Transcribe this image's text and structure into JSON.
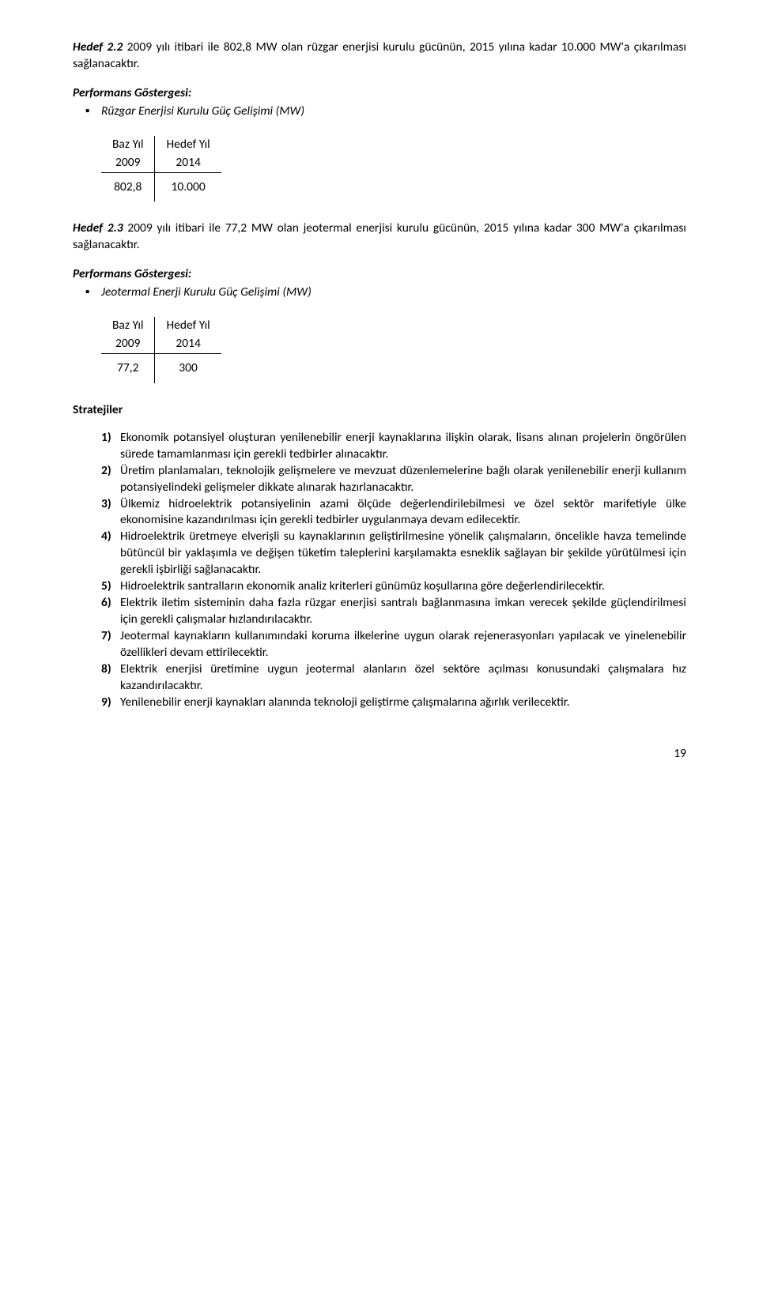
{
  "hedef22": {
    "label": "Hedef 2.2",
    "text": " 2009 yılı itibari ile 802,8 MW olan rüzgar enerjisi kurulu gücünün, 2015 yılına kadar 10.000 MW'a çıkarılması sağlanacaktır."
  },
  "perf1": {
    "title": "Performans Göstergesi:",
    "item": "Rüzgar Enerjisi Kurulu Güç Gelişimi (MW)"
  },
  "table1": {
    "h1a": "Baz Yıl",
    "h1b": "Hedef Yıl",
    "h2a": "2009",
    "h2b": "2014",
    "v1": "802,8",
    "v2": "10.000"
  },
  "hedef23": {
    "label": "Hedef 2.3",
    "text": " 2009 yılı itibari ile 77,2 MW olan jeotermal enerjisi kurulu gücünün, 2015 yılına kadar 300 MW'a çıkarılması sağlanacaktır."
  },
  "perf2": {
    "title": "Performans Göstergesi:",
    "item": "Jeotermal Enerji Kurulu Güç Gelişimi (MW)"
  },
  "table2": {
    "h1a": "Baz Yıl",
    "h1b": "Hedef Yıl",
    "h2a": "2009",
    "h2b": "2014",
    "v1": "77,2",
    "v2": "300"
  },
  "strategiesTitle": "Stratejiler",
  "strategies": {
    "n1": "1)",
    "t1": "Ekonomik potansiyel oluşturan yenilenebilir enerji kaynaklarına ilişkin olarak, lisans alınan projelerin öngörülen sürede tamamlanması için gerekli tedbirler alınacaktır.",
    "n2": "2)",
    "t2": "Üretim planlamaları, teknolojik gelişmelere ve mevzuat düzenlemelerine bağlı olarak yenilenebilir enerji kullanım potansiyelindeki gelişmeler dikkate alınarak hazırlanacaktır.",
    "n3": "3)",
    "t3": "Ülkemiz hidroelektrik potansiyelinin azami ölçüde değerlendirilebilmesi ve özel sektör marifetiyle ülke ekonomisine kazandırılması için gerekli tedbirler uygulanmaya devam edilecektir.",
    "n4": "4)",
    "t4": "Hidroelektrik üretmeye elverişli su kaynaklarının geliştirilmesine yönelik çalışmaların, öncelikle havza temelinde bütüncül bir yaklaşımla ve değişen tüketim taleplerini karşılamakta esneklik sağlayan bir şekilde yürütülmesi için gerekli işbirliği sağlanacaktır.",
    "n5": "5)",
    "t5": "Hidroelektrik santralların ekonomik analiz kriterleri günümüz koşullarına göre değerlendirilecektir.",
    "n6": "6)",
    "t6": "Elektrik iletim sisteminin daha fazla rüzgar enerjisi santralı bağlanmasına imkan verecek şekilde güçlendirilmesi için gerekli çalışmalar hızlandırılacaktır.",
    "n7": "7)",
    "t7": "Jeotermal kaynakların kullanımındaki koruma ilkelerine uygun olarak rejenerasyonları yapılacak ve yinelenebilir özellikleri devam ettirilecektir.",
    "n8": "8)",
    "t8": "Elektrik enerjisi üretimine uygun jeotermal alanların özel sektöre açılması konusundaki çalışmalara hız kazandırılacaktır.",
    "n9": "9)",
    "t9": "Yenilenebilir enerji kaynakları alanında teknoloji geliştirme çalışmalarına ağırlık verilecektir."
  },
  "pageNum": "19"
}
